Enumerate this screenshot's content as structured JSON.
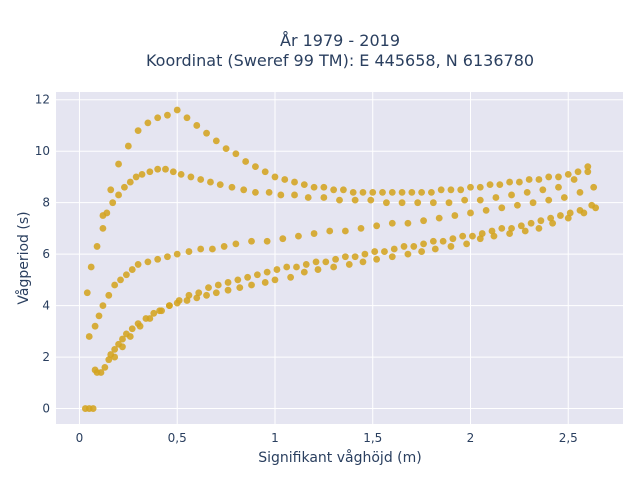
{
  "chart_data": {
    "type": "scatter",
    "title_lines": [
      "År 1979 - 2019",
      "Koordinat (Sweref 99 TM): E 445658, N 6136780"
    ],
    "xlabel": "Signifikant våghöjd (m)",
    "ylabel": "Vågperiod (s)",
    "xlim": [
      -0.12,
      2.78
    ],
    "ylim": [
      -0.6,
      12.3
    ],
    "xticks": [
      0,
      0.5,
      1,
      1.5,
      2,
      2.5
    ],
    "xtick_labels": [
      "0",
      "0,5",
      "1",
      "1,5",
      "2",
      "2,5"
    ],
    "yticks": [
      0,
      2,
      4,
      6,
      8,
      10,
      12
    ],
    "ytick_labels": [
      "0",
      "2",
      "4",
      "6",
      "8",
      "10",
      "12"
    ],
    "grid": true,
    "legend": "none",
    "colors": {
      "plot_background": "#e5e5f1",
      "grid": "#ffffff",
      "marker": "#d4a420",
      "text": "#2a3f5f"
    },
    "series": [
      {
        "x": [
          0.03,
          0.05,
          0.07,
          0.08,
          0.09,
          0.11,
          0.13,
          0.15,
          0.16,
          0.18,
          0.2,
          0.22,
          0.24,
          0.27,
          0.3,
          0.34,
          0.38,
          0.42,
          0.46,
          0.5,
          0.55,
          0.6,
          0.65,
          0.7,
          0.76,
          0.82,
          0.88,
          0.95,
          1.0,
          1.08,
          1.15,
          1.22,
          1.3,
          1.38,
          1.45,
          1.52,
          1.6,
          1.68,
          1.75,
          1.82,
          1.9,
          1.98,
          2.05,
          2.12,
          2.2,
          2.28,
          2.35,
          2.42,
          2.5,
          2.58,
          2.64,
          0.05,
          0.08,
          0.1,
          0.12,
          0.15,
          0.18,
          0.21,
          0.24,
          0.27,
          0.3,
          0.35,
          0.4,
          0.45,
          0.5,
          0.56,
          0.62,
          0.68,
          0.74,
          0.8,
          0.88,
          0.96,
          1.04,
          1.12,
          1.2,
          1.28,
          1.36,
          1.44,
          1.52,
          1.6,
          1.68,
          1.76,
          1.84,
          1.92,
          2.0,
          2.08,
          2.16,
          2.24,
          2.32,
          2.4,
          2.48,
          2.56,
          2.63,
          0.04,
          0.06,
          0.09,
          0.12,
          0.14,
          0.17,
          0.2,
          0.23,
          0.26,
          0.29,
          0.32,
          0.36,
          0.4,
          0.44,
          0.48,
          0.52,
          0.57,
          0.62,
          0.67,
          0.72,
          0.78,
          0.84,
          0.9,
          0.97,
          1.03,
          1.1,
          1.17,
          1.25,
          1.33,
          1.41,
          1.49,
          1.57,
          1.65,
          1.73,
          1.81,
          1.89,
          1.97,
          2.05,
          2.13,
          2.21,
          2.29,
          2.37,
          2.45,
          2.53,
          2.6,
          0.12,
          0.16,
          0.2,
          0.25,
          0.3,
          0.35,
          0.4,
          0.45,
          0.5,
          0.55,
          0.6,
          0.65,
          0.7,
          0.75,
          0.8,
          0.85,
          0.9,
          0.95,
          1.0,
          1.05,
          1.1,
          1.15,
          1.2,
          1.25,
          1.3,
          1.35,
          1.4,
          1.45,
          1.5,
          1.55,
          1.6,
          1.65,
          1.7,
          1.75,
          1.8,
          1.85,
          1.9,
          1.95,
          2.0,
          2.05,
          2.1,
          2.15,
          2.2,
          2.25,
          2.3,
          2.35,
          2.4,
          2.45,
          2.5,
          2.55,
          2.6,
          0.18,
          0.22,
          0.26,
          0.31,
          0.36,
          0.41,
          0.46,
          0.51,
          0.56,
          0.61,
          0.66,
          0.71,
          0.76,
          0.81,
          0.86,
          0.91,
          0.96,
          1.01,
          1.06,
          1.11,
          1.16,
          1.21,
          1.26,
          1.31,
          1.36,
          1.41,
          1.46,
          1.51,
          1.56,
          1.61,
          1.66,
          1.71,
          1.76,
          1.81,
          1.86,
          1.91,
          1.96,
          2.01,
          2.06,
          2.11,
          2.16,
          2.21,
          2.26,
          2.31,
          2.36,
          2.41,
          2.46,
          2.51,
          2.56,
          2.62
        ],
        "y": [
          0.0,
          0.0,
          0.0,
          1.5,
          1.4,
          1.4,
          1.6,
          1.9,
          2.1,
          2.3,
          2.5,
          2.7,
          2.9,
          3.1,
          3.3,
          3.5,
          3.7,
          3.8,
          4.0,
          4.1,
          4.2,
          4.3,
          4.4,
          4.5,
          4.6,
          4.7,
          4.8,
          4.9,
          5.0,
          5.1,
          5.3,
          5.4,
          5.5,
          5.6,
          5.7,
          5.8,
          5.9,
          6.0,
          6.1,
          6.2,
          6.3,
          6.4,
          6.6,
          6.7,
          6.8,
          6.9,
          7.0,
          7.2,
          7.4,
          7.6,
          7.8,
          2.8,
          3.2,
          3.6,
          4.0,
          4.4,
          4.8,
          5.0,
          5.2,
          5.4,
          5.6,
          5.7,
          5.8,
          5.9,
          6.0,
          6.1,
          6.2,
          6.2,
          6.3,
          6.4,
          6.5,
          6.5,
          6.6,
          6.7,
          6.8,
          6.9,
          6.9,
          7.0,
          7.1,
          7.2,
          7.2,
          7.3,
          7.4,
          7.5,
          7.6,
          7.7,
          7.8,
          7.9,
          8.0,
          8.1,
          8.2,
          8.4,
          8.6,
          4.5,
          5.5,
          6.3,
          7.0,
          7.6,
          8.0,
          8.3,
          8.6,
          8.8,
          9.0,
          9.1,
          9.2,
          9.3,
          9.3,
          9.2,
          9.1,
          9.0,
          8.9,
          8.8,
          8.7,
          8.6,
          8.5,
          8.4,
          8.4,
          8.3,
          8.3,
          8.2,
          8.2,
          8.1,
          8.1,
          8.1,
          8.0,
          8.0,
          8.0,
          8.0,
          8.0,
          8.1,
          8.1,
          8.2,
          8.3,
          8.4,
          8.5,
          8.6,
          8.9,
          9.2,
          7.5,
          8.5,
          9.5,
          10.2,
          10.8,
          11.1,
          11.3,
          11.4,
          11.6,
          11.3,
          11.0,
          10.7,
          10.4,
          10.1,
          9.9,
          9.6,
          9.4,
          9.2,
          9.0,
          8.9,
          8.8,
          8.7,
          8.6,
          8.6,
          8.5,
          8.5,
          8.4,
          8.4,
          8.4,
          8.4,
          8.4,
          8.4,
          8.4,
          8.4,
          8.4,
          8.5,
          8.5,
          8.5,
          8.6,
          8.6,
          8.7,
          8.7,
          8.8,
          8.8,
          8.9,
          8.9,
          9.0,
          9.0,
          9.1,
          9.2,
          9.4,
          2.0,
          2.4,
          2.8,
          3.2,
          3.5,
          3.8,
          4.0,
          4.2,
          4.4,
          4.5,
          4.7,
          4.8,
          4.9,
          5.0,
          5.1,
          5.2,
          5.3,
          5.4,
          5.5,
          5.5,
          5.6,
          5.7,
          5.7,
          5.8,
          5.9,
          5.9,
          6.0,
          6.1,
          6.1,
          6.2,
          6.3,
          6.3,
          6.4,
          6.5,
          6.5,
          6.6,
          6.7,
          6.7,
          6.8,
          6.9,
          7.0,
          7.0,
          7.1,
          7.2,
          7.3,
          7.4,
          7.5,
          7.6,
          7.7,
          7.9
        ]
      }
    ]
  }
}
